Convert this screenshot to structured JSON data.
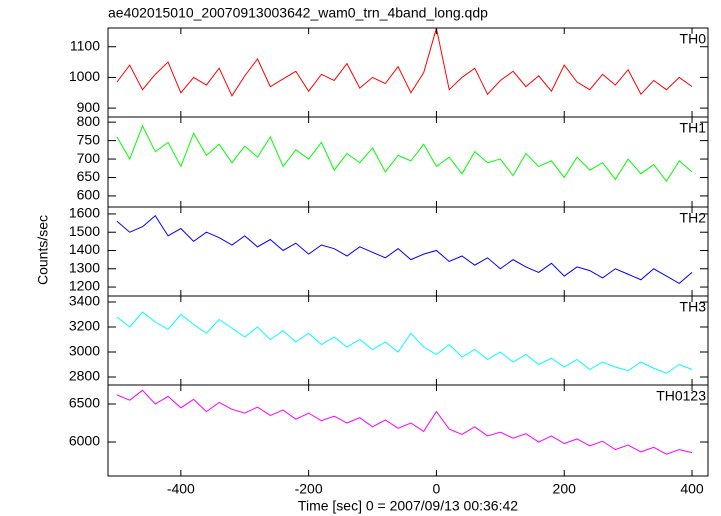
{
  "chart_data": [
    {
      "type": "line",
      "title": "ae402015010_20070913003642_wam0_trn_4band_long.qdp",
      "x": [
        -500,
        -480,
        -460,
        -440,
        -420,
        -400,
        -380,
        -360,
        -340,
        -320,
        -300,
        -280,
        -260,
        -240,
        -220,
        -200,
        -180,
        -160,
        -140,
        -120,
        -100,
        -80,
        -60,
        -40,
        -20,
        0,
        20,
        40,
        60,
        80,
        100,
        120,
        140,
        160,
        180,
        200,
        220,
        240,
        260,
        280,
        300,
        320,
        340,
        360,
        380,
        400
      ],
      "series": [
        {
          "name": "TH0",
          "color": "#ff0000",
          "values": [
            985,
            1040,
            960,
            1010,
            1050,
            950,
            1000,
            975,
            1030,
            940,
            1005,
            1060,
            970,
            995,
            1020,
            955,
            1010,
            990,
            1045,
            965,
            1000,
            980,
            1035,
            950,
            1015,
            1160,
            960,
            1000,
            1030,
            945,
            990,
            1020,
            970,
            1005,
            955,
            1040,
            985,
            960,
            1010,
            975,
            1025,
            945,
            990,
            960,
            1000,
            970
          ]
        }
      ],
      "xlim": [
        -514,
        425
      ],
      "ylim": [
        871,
        1161
      ],
      "yticks": [
        900,
        1000,
        1100
      ]
    },
    {
      "type": "line",
      "x": [
        -500,
        -480,
        -460,
        -440,
        -420,
        -400,
        -380,
        -360,
        -340,
        -320,
        -300,
        -280,
        -260,
        -240,
        -220,
        -200,
        -180,
        -160,
        -140,
        -120,
        -100,
        -80,
        -60,
        -40,
        -20,
        0,
        20,
        40,
        60,
        80,
        100,
        120,
        140,
        160,
        180,
        200,
        220,
        240,
        260,
        280,
        300,
        320,
        340,
        360,
        380,
        400
      ],
      "series": [
        {
          "name": "TH1",
          "color": "#00ff00",
          "values": [
            760,
            700,
            790,
            720,
            745,
            680,
            770,
            710,
            740,
            690,
            735,
            705,
            760,
            680,
            725,
            700,
            745,
            670,
            715,
            690,
            730,
            665,
            710,
            695,
            740,
            680,
            705,
            660,
            720,
            690,
            700,
            655,
            715,
            680,
            695,
            650,
            705,
            670,
            690,
            645,
            700,
            660,
            685,
            640,
            695,
            665
          ]
        }
      ],
      "xlim": [
        -514,
        425
      ],
      "ylim": [
        570,
        814
      ],
      "yticks": [
        600,
        650,
        700,
        750,
        800
      ]
    },
    {
      "type": "line",
      "ylabel": "Counts/sec",
      "x": [
        -500,
        -480,
        -460,
        -440,
        -420,
        -400,
        -380,
        -360,
        -340,
        -320,
        -300,
        -280,
        -260,
        -240,
        -220,
        -200,
        -180,
        -160,
        -140,
        -120,
        -100,
        -80,
        -60,
        -40,
        -20,
        0,
        20,
        40,
        60,
        80,
        100,
        120,
        140,
        160,
        180,
        200,
        220,
        240,
        260,
        280,
        300,
        320,
        340,
        360,
        380,
        400
      ],
      "series": [
        {
          "name": "TH2",
          "color": "#0000ff",
          "values": [
            1560,
            1500,
            1530,
            1590,
            1480,
            1520,
            1450,
            1500,
            1470,
            1430,
            1480,
            1420,
            1460,
            1400,
            1440,
            1380,
            1430,
            1410,
            1370,
            1420,
            1390,
            1360,
            1410,
            1350,
            1380,
            1400,
            1340,
            1370,
            1320,
            1360,
            1300,
            1350,
            1310,
            1280,
            1330,
            1260,
            1310,
            1290,
            1250,
            1300,
            1270,
            1240,
            1300,
            1260,
            1220,
            1280
          ]
        }
      ],
      "xlim": [
        -514,
        425
      ],
      "ylim": [
        1151,
        1638
      ],
      "yticks": [
        1200,
        1300,
        1400,
        1500,
        1600
      ]
    },
    {
      "type": "line",
      "x": [
        -500,
        -480,
        -460,
        -440,
        -420,
        -400,
        -380,
        -360,
        -340,
        -320,
        -300,
        -280,
        -260,
        -240,
        -220,
        -200,
        -180,
        -160,
        -140,
        -120,
        -100,
        -80,
        -60,
        -40,
        -20,
        0,
        20,
        40,
        60,
        80,
        100,
        120,
        140,
        160,
        180,
        200,
        220,
        240,
        260,
        280,
        300,
        320,
        340,
        360,
        380,
        400
      ],
      "series": [
        {
          "name": "TH3",
          "color": "#00ffff",
          "values": [
            3280,
            3200,
            3320,
            3240,
            3180,
            3300,
            3220,
            3150,
            3260,
            3190,
            3120,
            3200,
            3100,
            3170,
            3080,
            3150,
            3060,
            3120,
            3040,
            3100,
            3020,
            3080,
            3000,
            3150,
            3040,
            2980,
            3060,
            2960,
            3020,
            2940,
            3000,
            2920,
            2980,
            2900,
            2950,
            2880,
            2940,
            2860,
            2920,
            2880,
            2850,
            2920,
            2870,
            2830,
            2900,
            2860
          ]
        }
      ],
      "xlim": [
        -514,
        425
      ],
      "ylim": [
        2736,
        3448
      ],
      "yticks": [
        2800,
        3000,
        3200,
        3400
      ]
    },
    {
      "type": "line",
      "xlabel": "Time [sec] 0 = 2007/09/13 00:36:42",
      "x": [
        -500,
        -480,
        -460,
        -440,
        -420,
        -400,
        -380,
        -360,
        -340,
        -320,
        -300,
        -280,
        -260,
        -240,
        -220,
        -200,
        -180,
        -160,
        -140,
        -120,
        -100,
        -80,
        -60,
        -40,
        -20,
        0,
        20,
        40,
        60,
        80,
        100,
        120,
        140,
        160,
        180,
        200,
        220,
        240,
        260,
        280,
        300,
        320,
        340,
        360,
        380,
        400
      ],
      "series": [
        {
          "name": "TH0123",
          "color": "#ff00ff",
          "values": [
            6620,
            6550,
            6680,
            6500,
            6600,
            6450,
            6560,
            6400,
            6520,
            6430,
            6380,
            6460,
            6350,
            6420,
            6300,
            6380,
            6280,
            6340,
            6250,
            6320,
            6200,
            6290,
            6180,
            6250,
            6140,
            6400,
            6170,
            6100,
            6200,
            6080,
            6130,
            6050,
            6110,
            6000,
            6080,
            5980,
            6040,
            5950,
            6010,
            5900,
            5960,
            5870,
            5930,
            5840,
            5900,
            5860
          ]
        }
      ],
      "xlim": [
        -514,
        425
      ],
      "ylim": [
        5553,
        6750
      ],
      "yticks": [
        6000,
        6500
      ],
      "xticks": [
        -400,
        -200,
        0,
        200,
        400
      ]
    }
  ]
}
